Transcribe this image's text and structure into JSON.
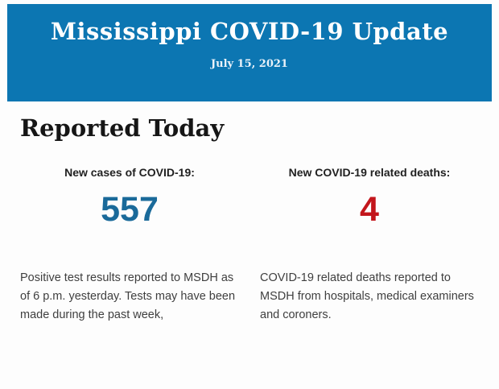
{
  "header": {
    "title": "Mississippi COVID-19 Update",
    "date": "July 15, 2021",
    "background_color": "#0c76b2",
    "title_color": "#ffffff"
  },
  "main": {
    "section_title": "Reported Today",
    "stats": [
      {
        "label": "New cases of COVID-19:",
        "value": "557",
        "value_color": "#1a6a9a",
        "description": "Positive test results reported to MSDH as of 6 p.m. yesterday. Tests may have been made during the past week,"
      },
      {
        "label": "New COVID-19 related deaths:",
        "value": "4",
        "value_color": "#c3161c",
        "description": "COVID-19 related deaths reported to MSDH from hospitals, medical examiners and coroners."
      }
    ]
  }
}
